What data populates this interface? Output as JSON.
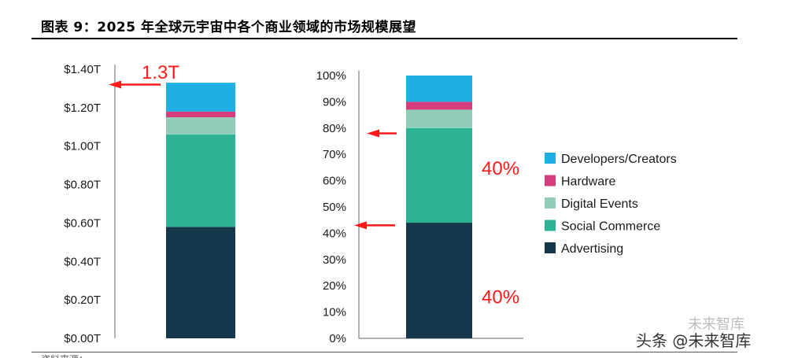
{
  "title": "图表 9：2025 年全球元宇宙中各个商业领域的市场规模展望",
  "source_note": "资料来源：",
  "watermark": "头条 @未来智库",
  "watermark_faint": "未来智库",
  "colors": {
    "Developers/Creators": "#1eafe3",
    "Hardware": "#d63d7d",
    "Digital Events": "#92cdb8",
    "Social Commerce": "#2bb393",
    "Advertising": "#15374b",
    "annotation": "#ff1a1a"
  },
  "chart_data": [
    {
      "type": "bar",
      "stacked": true,
      "categories": [
        ""
      ],
      "yticks": [
        "$0.00T",
        "$0.20T",
        "$0.40T",
        "$0.60T",
        "$0.80T",
        "$1.00T",
        "$1.20T",
        "$1.40T"
      ],
      "ylim": [
        0,
        1.4
      ],
      "series": [
        {
          "name": "Advertising",
          "values": [
            0.58
          ]
        },
        {
          "name": "Social Commerce",
          "values": [
            0.48
          ]
        },
        {
          "name": "Digital Events",
          "values": [
            0.09
          ]
        },
        {
          "name": "Hardware",
          "values": [
            0.03
          ]
        },
        {
          "name": "Developers/Creators",
          "values": [
            0.15
          ]
        }
      ],
      "annotations": [
        {
          "text": "1.3T",
          "y": 1.32
        }
      ]
    },
    {
      "type": "bar",
      "stacked": true,
      "categories": [
        ""
      ],
      "yticks": [
        "0%",
        "10%",
        "20%",
        "30%",
        "40%",
        "50%",
        "60%",
        "70%",
        "80%",
        "90%",
        "100%"
      ],
      "ylim": [
        0,
        100
      ],
      "series": [
        {
          "name": "Advertising",
          "values": [
            44
          ]
        },
        {
          "name": "Social Commerce",
          "values": [
            36
          ]
        },
        {
          "name": "Digital Events",
          "values": [
            7
          ]
        },
        {
          "name": "Hardware",
          "values": [
            3
          ]
        },
        {
          "name": "Developers/Creators",
          "values": [
            10
          ]
        }
      ],
      "annotations": [
        {
          "text": "40%",
          "label_y": 65,
          "arrow_y": 78
        },
        {
          "text": "40%",
          "label_y": 16,
          "arrow_y": 43
        }
      ],
      "legend": [
        "Developers/Creators",
        "Hardware",
        "Digital Events",
        "Social Commerce",
        "Advertising"
      ],
      "legend_position": "right"
    }
  ]
}
